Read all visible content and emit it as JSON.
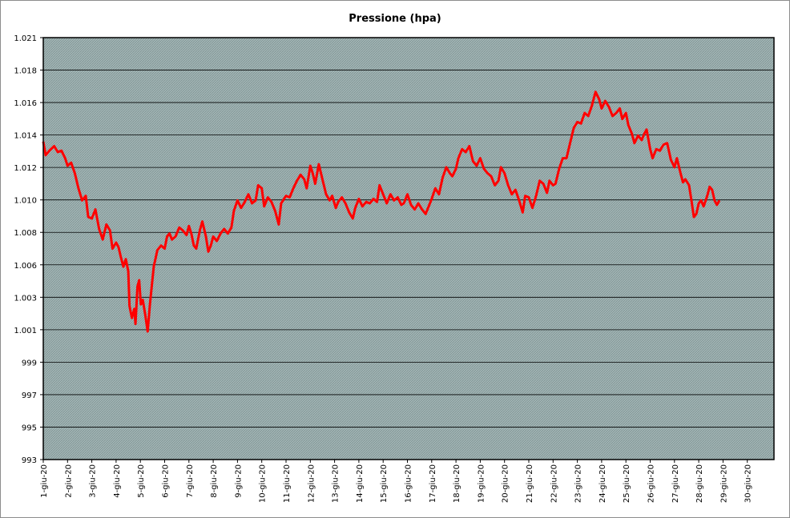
{
  "chart_data": {
    "type": "line",
    "title": "Pressione (hpa)",
    "xlabel": "",
    "ylabel": "",
    "ylim": [
      993,
      1021
    ],
    "grid": true,
    "legend": "none",
    "colors": {
      "line": "#ff0000",
      "plot_bg": "#9fb3b3",
      "gridline": "#000000",
      "frame": "#8c8c8c"
    },
    "ytick_labels": [
      "993",
      "995",
      "997",
      "999",
      "1.001",
      "1.003",
      "1.006",
      "1.008",
      "1.010",
      "1.012",
      "1.014",
      "1.016",
      "1.018",
      "1.021"
    ],
    "xtick_labels": [
      "1-giu-20",
      "2-giu-20",
      "3-giu-20",
      "4-giu-20",
      "5-giu-20",
      "6-giu-20",
      "7-giu-20",
      "8-giu-20",
      "9-giu-20",
      "10-giu-20",
      "11-giu-20",
      "12-giu-20",
      "13-giu-20",
      "14-giu-20",
      "15-giu-20",
      "16-giu-20",
      "17-giu-20",
      "18-giu-20",
      "19-giu-20",
      "20-giu-20",
      "21-giu-20",
      "22-giu-20",
      "23-giu-20",
      "24-giu-20",
      "25-giu-20",
      "26-giu-20",
      "27-giu-20",
      "28-giu-20",
      "29-giu-20",
      "30-giu-20"
    ],
    "series": [
      {
        "x_unit": "day of June 2020",
        "points": [
          [
            1.0,
            1014.1
          ],
          [
            1.1,
            1013.2
          ],
          [
            1.25,
            1013.5
          ],
          [
            1.45,
            1013.8
          ],
          [
            1.6,
            1013.4
          ],
          [
            1.75,
            1013.5
          ],
          [
            1.9,
            1013.0
          ],
          [
            2.0,
            1012.5
          ],
          [
            2.15,
            1012.7
          ],
          [
            2.3,
            1012.0
          ],
          [
            2.45,
            1011.0
          ],
          [
            2.6,
            1010.2
          ],
          [
            2.75,
            1010.5
          ],
          [
            2.85,
            1009.1
          ],
          [
            3.0,
            1009.0
          ],
          [
            3.15,
            1009.6
          ],
          [
            3.3,
            1008.3
          ],
          [
            3.45,
            1007.6
          ],
          [
            3.6,
            1008.6
          ],
          [
            3.75,
            1008.2
          ],
          [
            3.85,
            1007.0
          ],
          [
            4.0,
            1007.4
          ],
          [
            4.1,
            1007.1
          ],
          [
            4.2,
            1006.4
          ],
          [
            4.3,
            1005.8
          ],
          [
            4.4,
            1006.3
          ],
          [
            4.5,
            1005.5
          ],
          [
            4.55,
            1003.2
          ],
          [
            4.65,
            1002.4
          ],
          [
            4.75,
            1003.0
          ],
          [
            4.8,
            1002.0
          ],
          [
            4.88,
            1004.5
          ],
          [
            4.95,
            1004.9
          ],
          [
            5.02,
            1003.3
          ],
          [
            5.1,
            1003.6
          ],
          [
            5.2,
            1002.6
          ],
          [
            5.3,
            1001.5
          ],
          [
            5.4,
            1003.4
          ],
          [
            5.55,
            1005.8
          ],
          [
            5.7,
            1006.9
          ],
          [
            5.85,
            1007.2
          ],
          [
            6.0,
            1007.0
          ],
          [
            6.1,
            1007.8
          ],
          [
            6.2,
            1008.0
          ],
          [
            6.3,
            1007.6
          ],
          [
            6.45,
            1007.8
          ],
          [
            6.6,
            1008.4
          ],
          [
            6.75,
            1008.2
          ],
          [
            6.9,
            1007.9
          ],
          [
            7.0,
            1008.5
          ],
          [
            7.1,
            1008.0
          ],
          [
            7.2,
            1007.2
          ],
          [
            7.3,
            1007.0
          ],
          [
            7.45,
            1008.2
          ],
          [
            7.55,
            1008.8
          ],
          [
            7.7,
            1007.8
          ],
          [
            7.8,
            1006.8
          ],
          [
            7.9,
            1007.2
          ],
          [
            8.0,
            1007.8
          ],
          [
            8.05,
            1007.7
          ],
          [
            8.15,
            1007.5
          ],
          [
            8.3,
            1008.0
          ],
          [
            8.45,
            1008.3
          ],
          [
            8.6,
            1008.0
          ],
          [
            8.75,
            1008.4
          ],
          [
            8.85,
            1009.5
          ],
          [
            9.0,
            1010.2
          ],
          [
            9.15,
            1009.7
          ],
          [
            9.3,
            1010.1
          ],
          [
            9.45,
            1010.6
          ],
          [
            9.6,
            1010.0
          ],
          [
            9.75,
            1010.2
          ],
          [
            9.85,
            1011.2
          ],
          [
            10.0,
            1011.0
          ],
          [
            10.1,
            1009.8
          ],
          [
            10.25,
            1010.4
          ],
          [
            10.4,
            1010.1
          ],
          [
            10.55,
            1009.5
          ],
          [
            10.7,
            1008.6
          ],
          [
            10.8,
            1010.0
          ],
          [
            11.0,
            1010.5
          ],
          [
            11.15,
            1010.4
          ],
          [
            11.3,
            1011.0
          ],
          [
            11.45,
            1011.5
          ],
          [
            11.6,
            1011.9
          ],
          [
            11.75,
            1011.6
          ],
          [
            11.85,
            1011.0
          ],
          [
            12.0,
            1012.5
          ],
          [
            12.1,
            1012.0
          ],
          [
            12.2,
            1011.3
          ],
          [
            12.35,
            1012.6
          ],
          [
            12.5,
            1011.6
          ],
          [
            12.65,
            1010.6
          ],
          [
            12.8,
            1010.2
          ],
          [
            12.9,
            1010.5
          ],
          [
            13.05,
            1009.7
          ],
          [
            13.15,
            1010.1
          ],
          [
            13.3,
            1010.4
          ],
          [
            13.45,
            1010.0
          ],
          [
            13.6,
            1009.4
          ],
          [
            13.75,
            1009.0
          ],
          [
            13.85,
            1009.7
          ],
          [
            14.0,
            1010.3
          ],
          [
            14.15,
            1009.8
          ],
          [
            14.3,
            1010.1
          ],
          [
            14.45,
            1010.0
          ],
          [
            14.6,
            1010.3
          ],
          [
            14.75,
            1010.1
          ],
          [
            14.85,
            1011.2
          ],
          [
            15.0,
            1010.6
          ],
          [
            15.15,
            1010.0
          ],
          [
            15.3,
            1010.6
          ],
          [
            15.45,
            1010.2
          ],
          [
            15.6,
            1010.4
          ],
          [
            15.75,
            1009.9
          ],
          [
            15.85,
            1010.0
          ],
          [
            16.0,
            1010.6
          ],
          [
            16.15,
            1009.9
          ],
          [
            16.3,
            1009.6
          ],
          [
            16.45,
            1010.0
          ],
          [
            16.6,
            1009.6
          ],
          [
            16.75,
            1009.3
          ],
          [
            16.85,
            1009.7
          ],
          [
            17.0,
            1010.3
          ],
          [
            17.15,
            1011.0
          ],
          [
            17.3,
            1010.6
          ],
          [
            17.45,
            1011.7
          ],
          [
            17.6,
            1012.4
          ],
          [
            17.75,
            1012.0
          ],
          [
            17.85,
            1011.8
          ],
          [
            18.0,
            1012.3
          ],
          [
            18.1,
            1013.0
          ],
          [
            18.25,
            1013.6
          ],
          [
            18.4,
            1013.4
          ],
          [
            18.55,
            1013.8
          ],
          [
            18.7,
            1012.8
          ],
          [
            18.85,
            1012.5
          ],
          [
            19.0,
            1013.0
          ],
          [
            19.15,
            1012.3
          ],
          [
            19.3,
            1012.0
          ],
          [
            19.45,
            1011.8
          ],
          [
            19.6,
            1011.2
          ],
          [
            19.75,
            1011.5
          ],
          [
            19.85,
            1012.4
          ],
          [
            20.0,
            1012.0
          ],
          [
            20.15,
            1011.2
          ],
          [
            20.3,
            1010.6
          ],
          [
            20.45,
            1010.9
          ],
          [
            20.6,
            1010.2
          ],
          [
            20.75,
            1009.4
          ],
          [
            20.85,
            1010.5
          ],
          [
            21.0,
            1010.4
          ],
          [
            21.15,
            1009.7
          ],
          [
            21.3,
            1010.5
          ],
          [
            21.45,
            1011.5
          ],
          [
            21.6,
            1011.3
          ],
          [
            21.75,
            1010.7
          ],
          [
            21.85,
            1011.5
          ],
          [
            22.0,
            1011.2
          ],
          [
            22.1,
            1011.3
          ],
          [
            22.25,
            1012.3
          ],
          [
            22.4,
            1013.0
          ],
          [
            22.55,
            1013.0
          ],
          [
            22.7,
            1014.0
          ],
          [
            22.85,
            1015.0
          ],
          [
            23.0,
            1015.4
          ],
          [
            23.15,
            1015.3
          ],
          [
            23.3,
            1016.0
          ],
          [
            23.45,
            1015.8
          ],
          [
            23.6,
            1016.5
          ],
          [
            23.75,
            1017.4
          ],
          [
            23.9,
            1016.9
          ],
          [
            24.0,
            1016.3
          ],
          [
            24.15,
            1016.8
          ],
          [
            24.3,
            1016.4
          ],
          [
            24.45,
            1015.8
          ],
          [
            24.6,
            1016.0
          ],
          [
            24.75,
            1016.3
          ],
          [
            24.85,
            1015.6
          ],
          [
            25.0,
            1016.0
          ],
          [
            25.1,
            1015.2
          ],
          [
            25.25,
            1014.6
          ],
          [
            25.35,
            1014.0
          ],
          [
            25.5,
            1014.5
          ],
          [
            25.65,
            1014.2
          ],
          [
            25.75,
            1014.6
          ],
          [
            25.85,
            1014.9
          ],
          [
            26.0,
            1013.6
          ],
          [
            26.1,
            1013.0
          ],
          [
            26.25,
            1013.6
          ],
          [
            26.4,
            1013.5
          ],
          [
            26.55,
            1013.9
          ],
          [
            26.7,
            1014.0
          ],
          [
            26.85,
            1012.9
          ],
          [
            27.0,
            1012.4
          ],
          [
            27.1,
            1013.0
          ],
          [
            27.25,
            1012.0
          ],
          [
            27.35,
            1011.4
          ],
          [
            27.45,
            1011.6
          ],
          [
            27.6,
            1011.2
          ],
          [
            27.7,
            1010.2
          ],
          [
            27.8,
            1009.1
          ],
          [
            27.9,
            1009.3
          ],
          [
            28.0,
            1010.0
          ],
          [
            28.1,
            1010.2
          ],
          [
            28.2,
            1009.8
          ],
          [
            28.35,
            1010.5
          ],
          [
            28.45,
            1011.1
          ],
          [
            28.55,
            1010.9
          ],
          [
            28.65,
            1010.2
          ],
          [
            28.75,
            1009.9
          ],
          [
            28.85,
            1010.2
          ]
        ]
      }
    ]
  }
}
